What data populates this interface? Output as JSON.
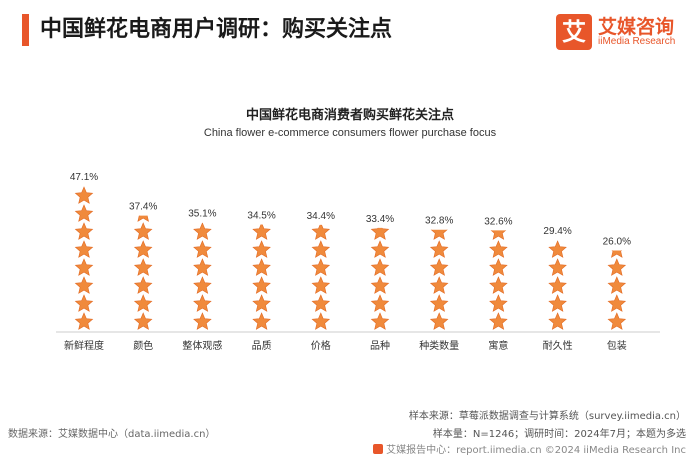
{
  "header": {
    "title": "中国鲜花电商用户调研：购买关注点",
    "logo_mark": "艾",
    "logo_cn": "艾媒咨询",
    "logo_en": "iiMedia Research"
  },
  "footer": {
    "data_source": "数据来源：艾媒数据中心（data.iimedia.cn）",
    "sample_source": "样本来源：草莓派数据调查与计算系统（survey.iimedia.cn）",
    "sample_size": "样本量：N=1246；调研时间：2024年7月；本题为多选",
    "copyright": "艾媒报告中心：report.iimedia.cn ©2024  iiMedia Research Inc"
  },
  "colors": {
    "accent": "#e8562a",
    "star": "#f08a3c",
    "star_stroke": "#e26a24"
  },
  "chart_data": {
    "type": "bar",
    "title": "中国鲜花电商消费者购买鲜花关注点",
    "subtitle": "China flower e-commerce consumers flower purchase focus",
    "categories": [
      "新鲜程度",
      "颜色",
      "整体观感",
      "品质",
      "价格",
      "品种",
      "种类数量",
      "寓意",
      "耐久性",
      "包装"
    ],
    "values": [
      47.1,
      37.4,
      35.1,
      34.5,
      34.4,
      33.4,
      32.8,
      32.6,
      29.4,
      26.0
    ],
    "value_labels": [
      "47.1%",
      "37.4%",
      "35.1%",
      "34.5%",
      "34.4%",
      "33.4%",
      "32.8%",
      "32.6%",
      "29.4%",
      "26.0%"
    ],
    "unit": "%",
    "ylim": [
      0,
      50
    ],
    "grid": false,
    "legend": "none"
  }
}
